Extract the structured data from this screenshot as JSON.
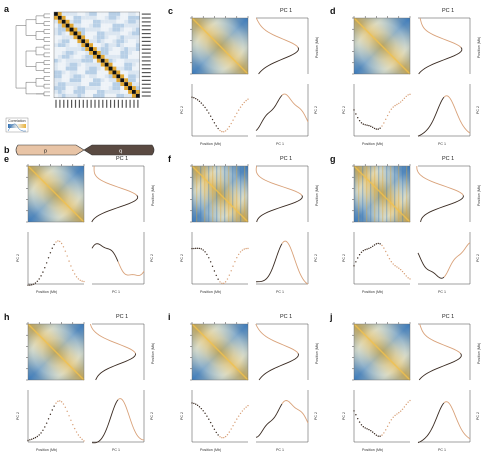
{
  "panel_labels": [
    "a",
    "b",
    "c",
    "d",
    "e",
    "f",
    "g",
    "h",
    "i",
    "j"
  ],
  "chromosome": {
    "p_arm": "p",
    "q_arm": "q"
  },
  "colorbar": {
    "title": "Correlation"
  },
  "panel_text": {
    "pc1_title": "PC 1",
    "pc2_label": "PC 2",
    "position_x": "Position (Mb)",
    "position_y": "Position (Mb)"
  },
  "colors": {
    "heat_high": "#e8b23a",
    "heat_low": "#2f6fb3",
    "heat_mid": "#f4f1ea",
    "trace_dark": "#3a2b22",
    "trace_light": "#d9a27a",
    "arm_fill": "#e8c4a6",
    "matrix_gold": "#e0a630",
    "matrix_black": "#111111",
    "matrix_light": "#c9daea"
  }
}
